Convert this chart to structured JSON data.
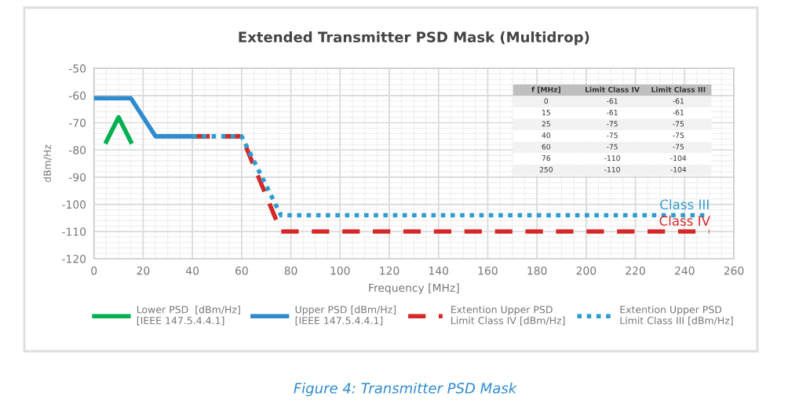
{
  "chart_data": {
    "type": "line",
    "title": "Extended Transmitter PSD Mask (Multidrop)",
    "xlabel": "Frequency [MHz]",
    "ylabel": "dBm/Hz",
    "xlim": [
      0,
      260
    ],
    "xticks": [
      0,
      20,
      40,
      60,
      80,
      100,
      120,
      140,
      160,
      180,
      200,
      220,
      240,
      260
    ],
    "ylim": [
      -120,
      -50
    ],
    "yticks": [
      -120,
      -110,
      -100,
      -90,
      -80,
      -70,
      -60,
      -50
    ],
    "grid": true,
    "legend": "bottom",
    "series": [
      {
        "name": "Lower PSD  [dBm/Hz]\n[IEEE 147.5.4.4.1]",
        "color": "#00b050",
        "line_style": "solid",
        "x": [
          5,
          10,
          15
        ],
        "values": [
          -77,
          -68,
          -77
        ]
      },
      {
        "name": "Upper PSD [dBm/Hz]\n[IEEE 147.5.4.4.1]",
        "color": "#2e8bd0",
        "line_style": "solid",
        "x": [
          0,
          15,
          25,
          40
        ],
        "values": [
          -61,
          -61,
          -75,
          -75
        ]
      },
      {
        "name": "Extention Upper PSD\nLimit Class IV [dBm/Hz]",
        "color": "#d62828",
        "line_style": "dashed",
        "x": [
          40,
          60,
          76,
          250
        ],
        "values": [
          -75,
          -75,
          -110,
          -110
        ]
      },
      {
        "name": "Extention Upper PSD\nLimit Class III [dBm/Hz]",
        "color": "#2e9ccf",
        "line_style": "dotted",
        "x": [
          40,
          60,
          76,
          250
        ],
        "values": [
          -75,
          -75,
          -104,
          -104
        ]
      }
    ],
    "annotations": [
      {
        "text": "Class III",
        "x": 240,
        "y": -104
      },
      {
        "text": "Class IV",
        "x": 240,
        "y": -110
      },
      "f [MHz]",
      "Limit Class IV",
      "Limit Class III",
      "0",
      "-61",
      "-61",
      "15",
      "-61",
      "-61",
      "25",
      "-75",
      "-75",
      "40",
      "-75",
      "-75",
      "60",
      "-75",
      "-75",
      "76",
      "-110",
      "-104",
      "250",
      "-110",
      "-104",
      "Figure 4: Transmitter PSD Mask"
    ]
  }
}
